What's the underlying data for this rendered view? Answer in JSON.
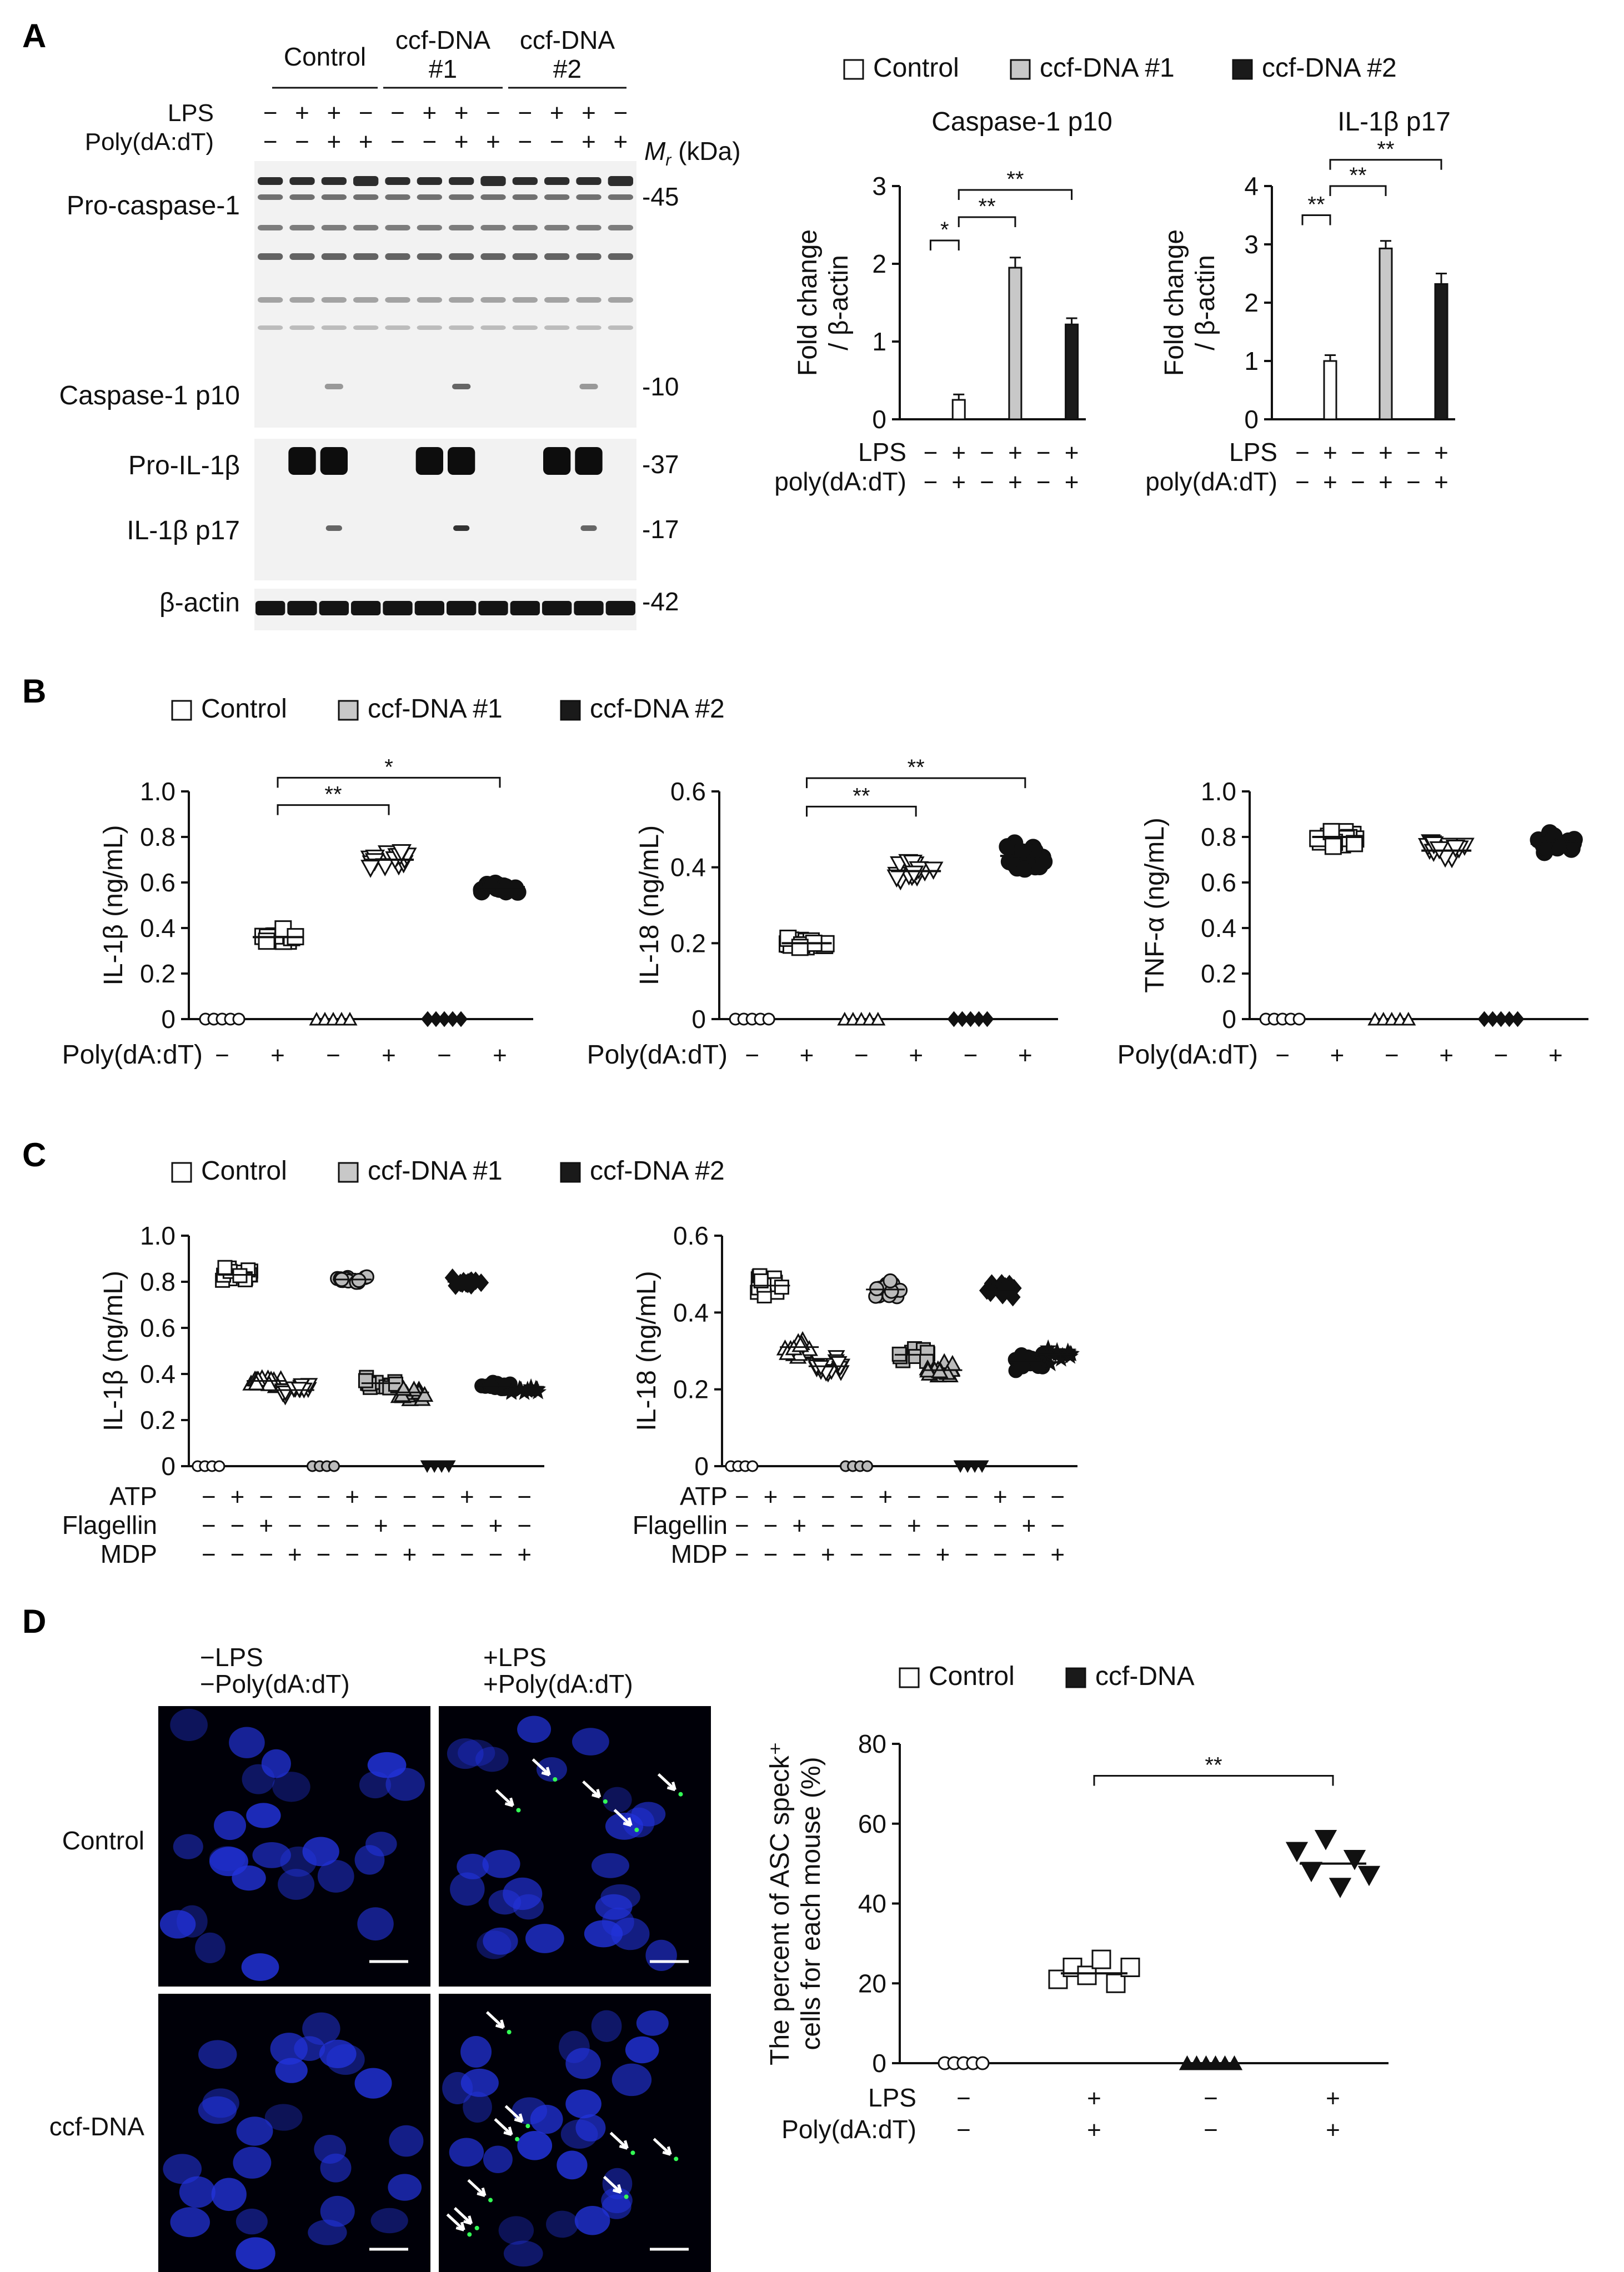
{
  "figure": {
    "panels": {
      "A": "A",
      "B": "B",
      "C": "C",
      "D": "D"
    },
    "legend3": {
      "control": "Control",
      "ccf1": "ccf-DNA #1",
      "ccf2": "ccf-DNA #2"
    },
    "legend2": {
      "control": "Control",
      "ccf": "ccf-DNA"
    },
    "colors": {
      "control": "#ffffff",
      "ccf1": "#c8c8c8",
      "ccf2": "#1a1a1a",
      "blot_bg": "#f2f2f2",
      "micro_bg": "#000008",
      "nuclei": "#2233dd",
      "speck": "#33ff55"
    }
  },
  "blot": {
    "group_labels": [
      "Control",
      "ccf-DNA\n#1",
      "ccf-DNA\n#2"
    ],
    "row_labels": [
      "LPS",
      "Poly(dA:dT)"
    ],
    "lps": [
      "−",
      "+",
      "+",
      "−",
      "−",
      "+",
      "+",
      "−",
      "−",
      "+",
      "+",
      "−"
    ],
    "poly": [
      "−",
      "−",
      "+",
      "+",
      "−",
      "−",
      "+",
      "+",
      "−",
      "−",
      "+",
      "+"
    ],
    "mr_label": "M",
    "mr_sub": "r",
    "mr_unit": " (kDa)",
    "band_labels": [
      "Pro-caspase-1",
      "Caspase-1 p10",
      "Pro-IL-1β",
      "IL-1β p17",
      "β-actin"
    ],
    "markers": [
      "-45",
      "-10",
      "-37",
      "-17",
      "-42"
    ]
  },
  "chart_data": [
    {
      "id": "A1",
      "type": "bar",
      "title": "Caspase-1 p10",
      "ylabel": "Fold change / β-actin",
      "ylim": [
        0,
        3
      ],
      "yticks": [
        "0",
        "1",
        "2",
        "3"
      ],
      "row_labels": [
        "LPS",
        "poly(dA:dT)"
      ],
      "lps": [
        "−",
        "+",
        "−",
        "+",
        "−",
        "+"
      ],
      "poly": [
        "−",
        "+",
        "−",
        "+",
        "−",
        "+"
      ],
      "series": [
        {
          "name": "Control",
          "values": [
            0,
            0.25
          ]
        },
        {
          "name": "ccf-DNA #1",
          "values": [
            0,
            1.95
          ]
        },
        {
          "name": "ccf-DNA #2",
          "values": [
            0,
            1.22
          ]
        }
      ],
      "errors": [
        0.07,
        0.13,
        0.08
      ],
      "significance": [
        "*",
        "**",
        "**"
      ]
    },
    {
      "id": "A2",
      "type": "bar",
      "title": "IL-1β p17",
      "ylabel": "Fold change / β-actin",
      "ylim": [
        0,
        4
      ],
      "yticks": [
        "0",
        "1",
        "2",
        "3",
        "4"
      ],
      "row_labels": [
        "LPS",
        "poly(dA:dT)"
      ],
      "lps": [
        "−",
        "+",
        "−",
        "+",
        "−",
        "+"
      ],
      "poly": [
        "−",
        "+",
        "−",
        "+",
        "−",
        "+"
      ],
      "series": [
        {
          "name": "Control",
          "values": [
            0,
            1.0
          ]
        },
        {
          "name": "ccf-DNA #1",
          "values": [
            0,
            2.93
          ]
        },
        {
          "name": "ccf-DNA #2",
          "values": [
            0,
            2.32
          ]
        }
      ],
      "errors": [
        0.1,
        0.13,
        0.18
      ],
      "significance": [
        "**",
        "**",
        "**"
      ]
    },
    {
      "id": "B1",
      "type": "scatter",
      "ylabel": "IL-1β (ng/mL)",
      "ylim": [
        0,
        1
      ],
      "yticks": [
        "0",
        "0.2",
        "0.4",
        "0.6",
        "0.8",
        "1.0"
      ],
      "row_labels": [
        "Poly(dA:dT)"
      ],
      "conds": [
        "−",
        "+",
        "−",
        "+",
        "−",
        "+"
      ],
      "means": [
        0,
        0.36,
        0,
        0.7,
        0,
        0.58
      ],
      "sds": [
        0,
        0.03,
        0,
        0.035,
        0,
        0.03
      ],
      "significance": [
        "**",
        "*"
      ]
    },
    {
      "id": "B2",
      "type": "scatter",
      "ylabel": "IL-18 (ng/mL)",
      "ylim": [
        0,
        0.6
      ],
      "yticks": [
        "0",
        "0.2",
        "0.4",
        "0.6"
      ],
      "row_labels": [
        "Poly(dA:dT)"
      ],
      "conds": [
        "−",
        "+",
        "−",
        "+",
        "−",
        "+"
      ],
      "means": [
        0,
        0.2,
        0,
        0.39,
        0,
        0.43
      ],
      "sds": [
        0,
        0.015,
        0,
        0.03,
        0,
        0.035
      ],
      "significance": [
        "**",
        "**"
      ]
    },
    {
      "id": "B3",
      "type": "scatter",
      "ylabel": "TNF-α (ng/mL)",
      "ylim": [
        0,
        1
      ],
      "yticks": [
        "0",
        "0.2",
        "0.4",
        "0.6",
        "0.8",
        "1.0"
      ],
      "row_labels": [
        "Poly(dA:dT)"
      ],
      "conds": [
        "−",
        "+",
        "−",
        "+",
        "−",
        "+"
      ],
      "means": [
        0,
        0.8,
        0,
        0.74,
        0,
        0.77
      ],
      "sds": [
        0,
        0.04,
        0,
        0.04,
        0,
        0.05
      ],
      "significance": []
    },
    {
      "id": "C1",
      "type": "scatter",
      "ylabel": "IL-1β (ng/mL)",
      "ylim": [
        0,
        1
      ],
      "yticks": [
        "0",
        "0.2",
        "0.4",
        "0.6",
        "0.8",
        "1.0"
      ],
      "row_labels": [
        "ATP",
        "Flagellin",
        "MDP"
      ],
      "atp": [
        "−",
        "+",
        "−",
        "−",
        "−",
        "+",
        "−",
        "−",
        "−",
        "+",
        "−",
        "−"
      ],
      "flag": [
        "−",
        "−",
        "+",
        "−",
        "−",
        "−",
        "+",
        "−",
        "−",
        "−",
        "+",
        "−"
      ],
      "mdp": [
        "−",
        "−",
        "−",
        "+",
        "−",
        "−",
        "−",
        "+",
        "−",
        "−",
        "−",
        "+"
      ],
      "means": [
        0,
        0.83,
        0.37,
        0.33,
        0,
        0.81,
        0.36,
        0.32,
        0,
        0.8,
        0.35,
        0.33
      ],
      "sds": [
        0,
        0.03,
        0.03,
        0.03,
        0,
        0.02,
        0.025,
        0.03,
        0,
        0.02,
        0.02,
        0.02
      ]
    },
    {
      "id": "C2",
      "type": "scatter",
      "ylabel": "IL-18 (ng/mL)",
      "ylim": [
        0,
        0.6
      ],
      "yticks": [
        "0",
        "0.2",
        "0.4",
        "0.6"
      ],
      "row_labels": [
        "ATP",
        "Flagellin",
        "MDP"
      ],
      "atp": [
        "−",
        "+",
        "−",
        "−",
        "−",
        "+",
        "−",
        "−",
        "−",
        "+",
        "−",
        "−"
      ],
      "flag": [
        "−",
        "−",
        "+",
        "−",
        "−",
        "−",
        "+",
        "−",
        "−",
        "−",
        "+",
        "−"
      ],
      "mdp": [
        "−",
        "−",
        "−",
        "+",
        "−",
        "−",
        "−",
        "+",
        "−",
        "−",
        "−",
        "+"
      ],
      "means": [
        0,
        0.47,
        0.31,
        0.26,
        0,
        0.46,
        0.29,
        0.25,
        0,
        0.46,
        0.27,
        0.29
      ],
      "sds": [
        0,
        0.03,
        0.025,
        0.025,
        0,
        0.025,
        0.02,
        0.025,
        0,
        0.03,
        0.03,
        0.03
      ]
    },
    {
      "id": "D1",
      "type": "scatter",
      "ylabel": "The percent of ASC speck⁺ cells for each mouse (%)",
      "ylim": [
        0,
        80
      ],
      "yticks": [
        "0",
        "20",
        "40",
        "60",
        "80"
      ],
      "row_labels": [
        "LPS",
        "Poly(dA:dT)"
      ],
      "lps": [
        "−",
        "+",
        "−",
        "+"
      ],
      "poly": [
        "−",
        "+",
        "−",
        "+"
      ],
      "points": [
        [
          0,
          0,
          0,
          0,
          0
        ],
        [
          21,
          24,
          22,
          26,
          20,
          24
        ],
        [
          0,
          0,
          0,
          0,
          0,
          0
        ],
        [
          53,
          48,
          56,
          44,
          51,
          47
        ]
      ],
      "means": [
        0,
        22.5,
        0,
        50
      ],
      "significance": [
        "**"
      ]
    }
  ],
  "micrographs": {
    "col_labels": [
      "−LPS\n−Poly(dA:dT)",
      "+LPS\n+Poly(dA:dT)"
    ],
    "row_labels": [
      "Control",
      "ccf-DNA"
    ]
  }
}
